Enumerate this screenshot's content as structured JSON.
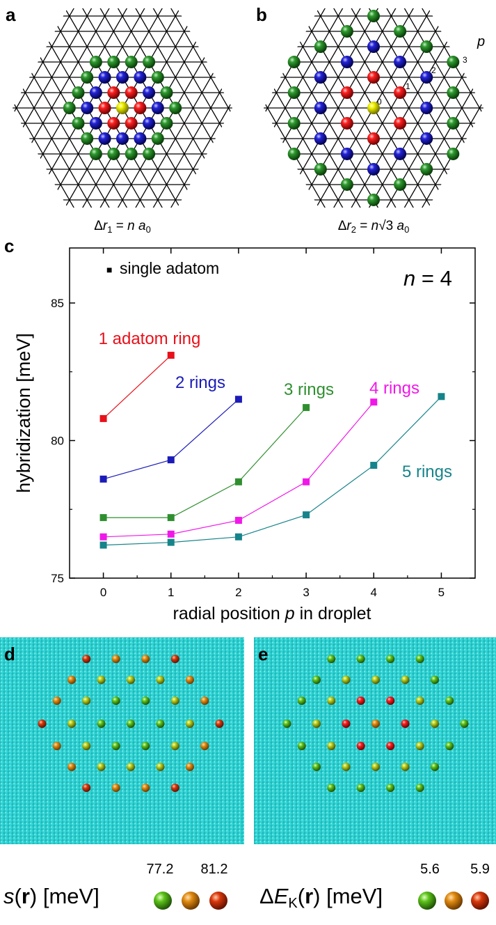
{
  "colors": {
    "red": "#e8101a",
    "blue": "#1b1bb8",
    "green": "#2f8f2f",
    "magenta": "#f018e8",
    "teal": "#16848a",
    "yellow": "#e6e600",
    "black": "#000000",
    "substrate": "#23c7c9",
    "scale_low": "#5cc21a",
    "scale_mid": "#e08a10",
    "scale_high": "#d8380c"
  },
  "panel_a": {
    "label": "a",
    "caption": {
      "delta": "Δ",
      "r": "r",
      "sub": "1",
      "eq": " = ",
      "n": "n",
      "a": " a",
      "a_sub": "0"
    }
  },
  "panel_b": {
    "label": "b",
    "caption": {
      "delta": "Δ",
      "r": "r",
      "sub": "2",
      "eq": " = ",
      "n": "n",
      "sqrt": "√3",
      "a": " a",
      "a_sub": "0"
    },
    "p_label": "p",
    "ring_numbers": [
      "0",
      "1",
      "2",
      "3"
    ]
  },
  "panel_c": {
    "label": "c"
  },
  "panel_d": {
    "label": "d",
    "scale": {
      "s": "s",
      "r": "r",
      "unit": " [meV]",
      "low": "77.2",
      "high": "81.2"
    }
  },
  "panel_e": {
    "label": "e",
    "scale": {
      "delta": "Δ",
      "e": "E",
      "sub": "K",
      "r": "r",
      "unit": " [meV]",
      "low": "5.6",
      "high": "5.9"
    }
  },
  "chart_data": {
    "type": "line",
    "xlabel_prefix": "radial position ",
    "xlabel_var": "p",
    "xlabel_suffix": " in droplet",
    "ylabel": "hybridization [meV]",
    "xlim": [
      -0.5,
      5.5
    ],
    "ylim": [
      75,
      87
    ],
    "xticks": [
      0,
      1,
      2,
      3,
      4,
      5
    ],
    "yticks": [
      75,
      80,
      85
    ],
    "legend": {
      "marker": "■",
      "text": "single adatom",
      "placement": "top-left"
    },
    "annotation": {
      "n": "n",
      "rest": " = 4",
      "placement": "top-right"
    },
    "series": [
      {
        "name": "1 adatom ring",
        "color": "#e8101a",
        "x": [
          0,
          1
        ],
        "y": [
          80.8,
          83.1
        ]
      },
      {
        "name": "2 rings",
        "color": "#1b1bb8",
        "x": [
          0,
          1,
          2
        ],
        "y": [
          78.6,
          79.3,
          81.5
        ]
      },
      {
        "name": "3 rings",
        "color": "#2f8f2f",
        "x": [
          0,
          1,
          2,
          3
        ],
        "y": [
          77.2,
          77.2,
          78.5,
          81.2
        ]
      },
      {
        "name": "4 rings",
        "color": "#f018e8",
        "x": [
          0,
          1,
          2,
          3,
          4
        ],
        "y": [
          76.5,
          76.6,
          77.1,
          78.5,
          81.4
        ]
      },
      {
        "name": "5 rings",
        "color": "#16848a",
        "x": [
          0,
          1,
          2,
          3,
          4,
          5
        ],
        "y": [
          76.2,
          76.3,
          76.5,
          77.3,
          79.1,
          81.6
        ]
      }
    ]
  }
}
